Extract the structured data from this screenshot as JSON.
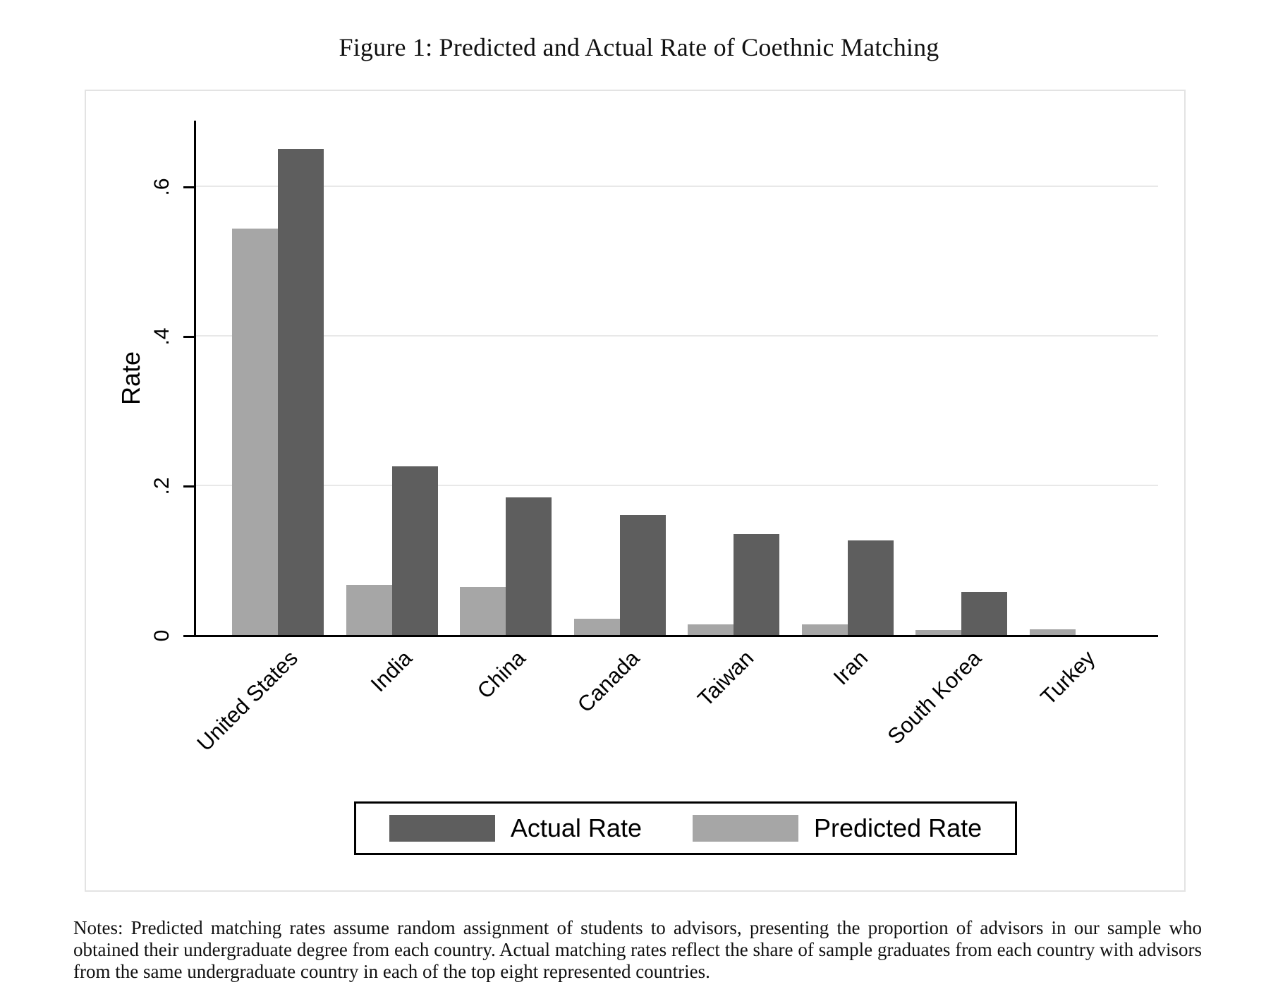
{
  "title": "Figure 1: Predicted and Actual Rate of Coethnic Matching",
  "chart_data": {
    "type": "bar",
    "title": "Figure 1: Predicted and Actual Rate of Coethnic Matching",
    "categories": [
      "United States",
      "India",
      "China",
      "Canada",
      "Taiwan",
      "Iran",
      "South Korea",
      "Turkey"
    ],
    "series": [
      {
        "name": "Predicted Rate",
        "color": "#a6a6a6",
        "values": [
          0.543,
          0.067,
          0.064,
          0.022,
          0.014,
          0.014,
          0.007,
          0.008
        ]
      },
      {
        "name": "Actual Rate",
        "color": "#5e5e5e",
        "values": [
          0.65,
          0.225,
          0.184,
          0.16,
          0.135,
          0.126,
          0.058,
          0.0
        ]
      }
    ],
    "xlabel": "",
    "ylabel": "Rate",
    "yticks": [
      0,
      0.2,
      0.4,
      0.6
    ],
    "ytick_labels": [
      "0",
      ".2",
      ".4",
      ".6"
    ],
    "ylim": [
      0,
      0.688
    ],
    "grid": "horizontal",
    "bar_order": "predicted left, actual right",
    "xlabel_angle_deg": 45,
    "legend_position": "bottom",
    "legend_entries": [
      "Actual Rate",
      "Predicted Rate"
    ]
  },
  "legend": {
    "actual_label": "Actual Rate",
    "predicted_label": "Predicted Rate"
  },
  "notes": "Notes: Predicted matching rates assume random assignment of students to advisors, presenting the proportion of advisors in our sample who obtained their undergraduate degree from each country.  Actual matching rates reflect the share of sample graduates from each country with advisors from the same undergraduate country in each of the top eight represented countries.",
  "colors": {
    "actual_bar": "#5e5e5e",
    "predicted_bar": "#a6a6a6",
    "gridline": "#e8e8e8",
    "axis": "#000000",
    "frame_border": "#e3e3e3"
  }
}
